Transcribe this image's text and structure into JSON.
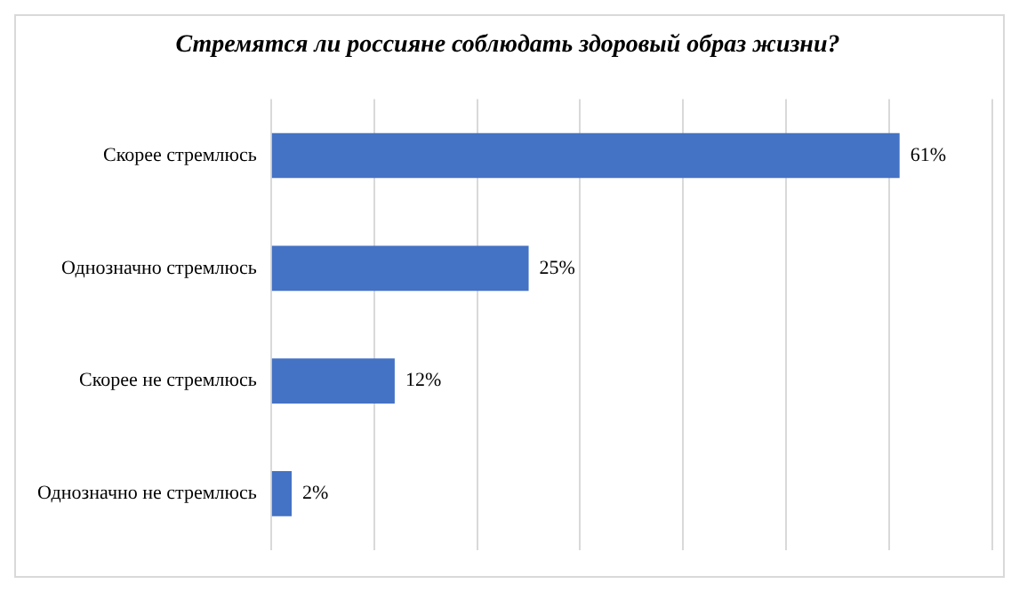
{
  "chart_data": {
    "type": "bar",
    "orientation": "horizontal",
    "title": "Стремятся ли россияне соблюдать здоровый образ жизни?",
    "categories": [
      "Скорее стремлюсь",
      "Однозначно стремлюсь",
      "Скорее не стремлюсь",
      "Однозначно не стремлюсь"
    ],
    "values": [
      61,
      25,
      12,
      2
    ],
    "color": "#4472c4",
    "value_labels": [
      "61%",
      "25%",
      "12%",
      "2%"
    ],
    "xlim": [
      0,
      70
    ],
    "xticks": [
      {
        "value": 0,
        "label": null
      },
      {
        "value": 10,
        "label": null
      },
      {
        "value": 20,
        "label": null
      },
      {
        "value": 30,
        "label": null
      },
      {
        "value": 40,
        "label": null
      },
      {
        "value": 50,
        "label": null
      },
      {
        "value": 60,
        "label": null
      },
      {
        "value": 70,
        "label": null
      }
    ],
    "grid": "x",
    "legend": false,
    "tick_labels": "y"
  }
}
